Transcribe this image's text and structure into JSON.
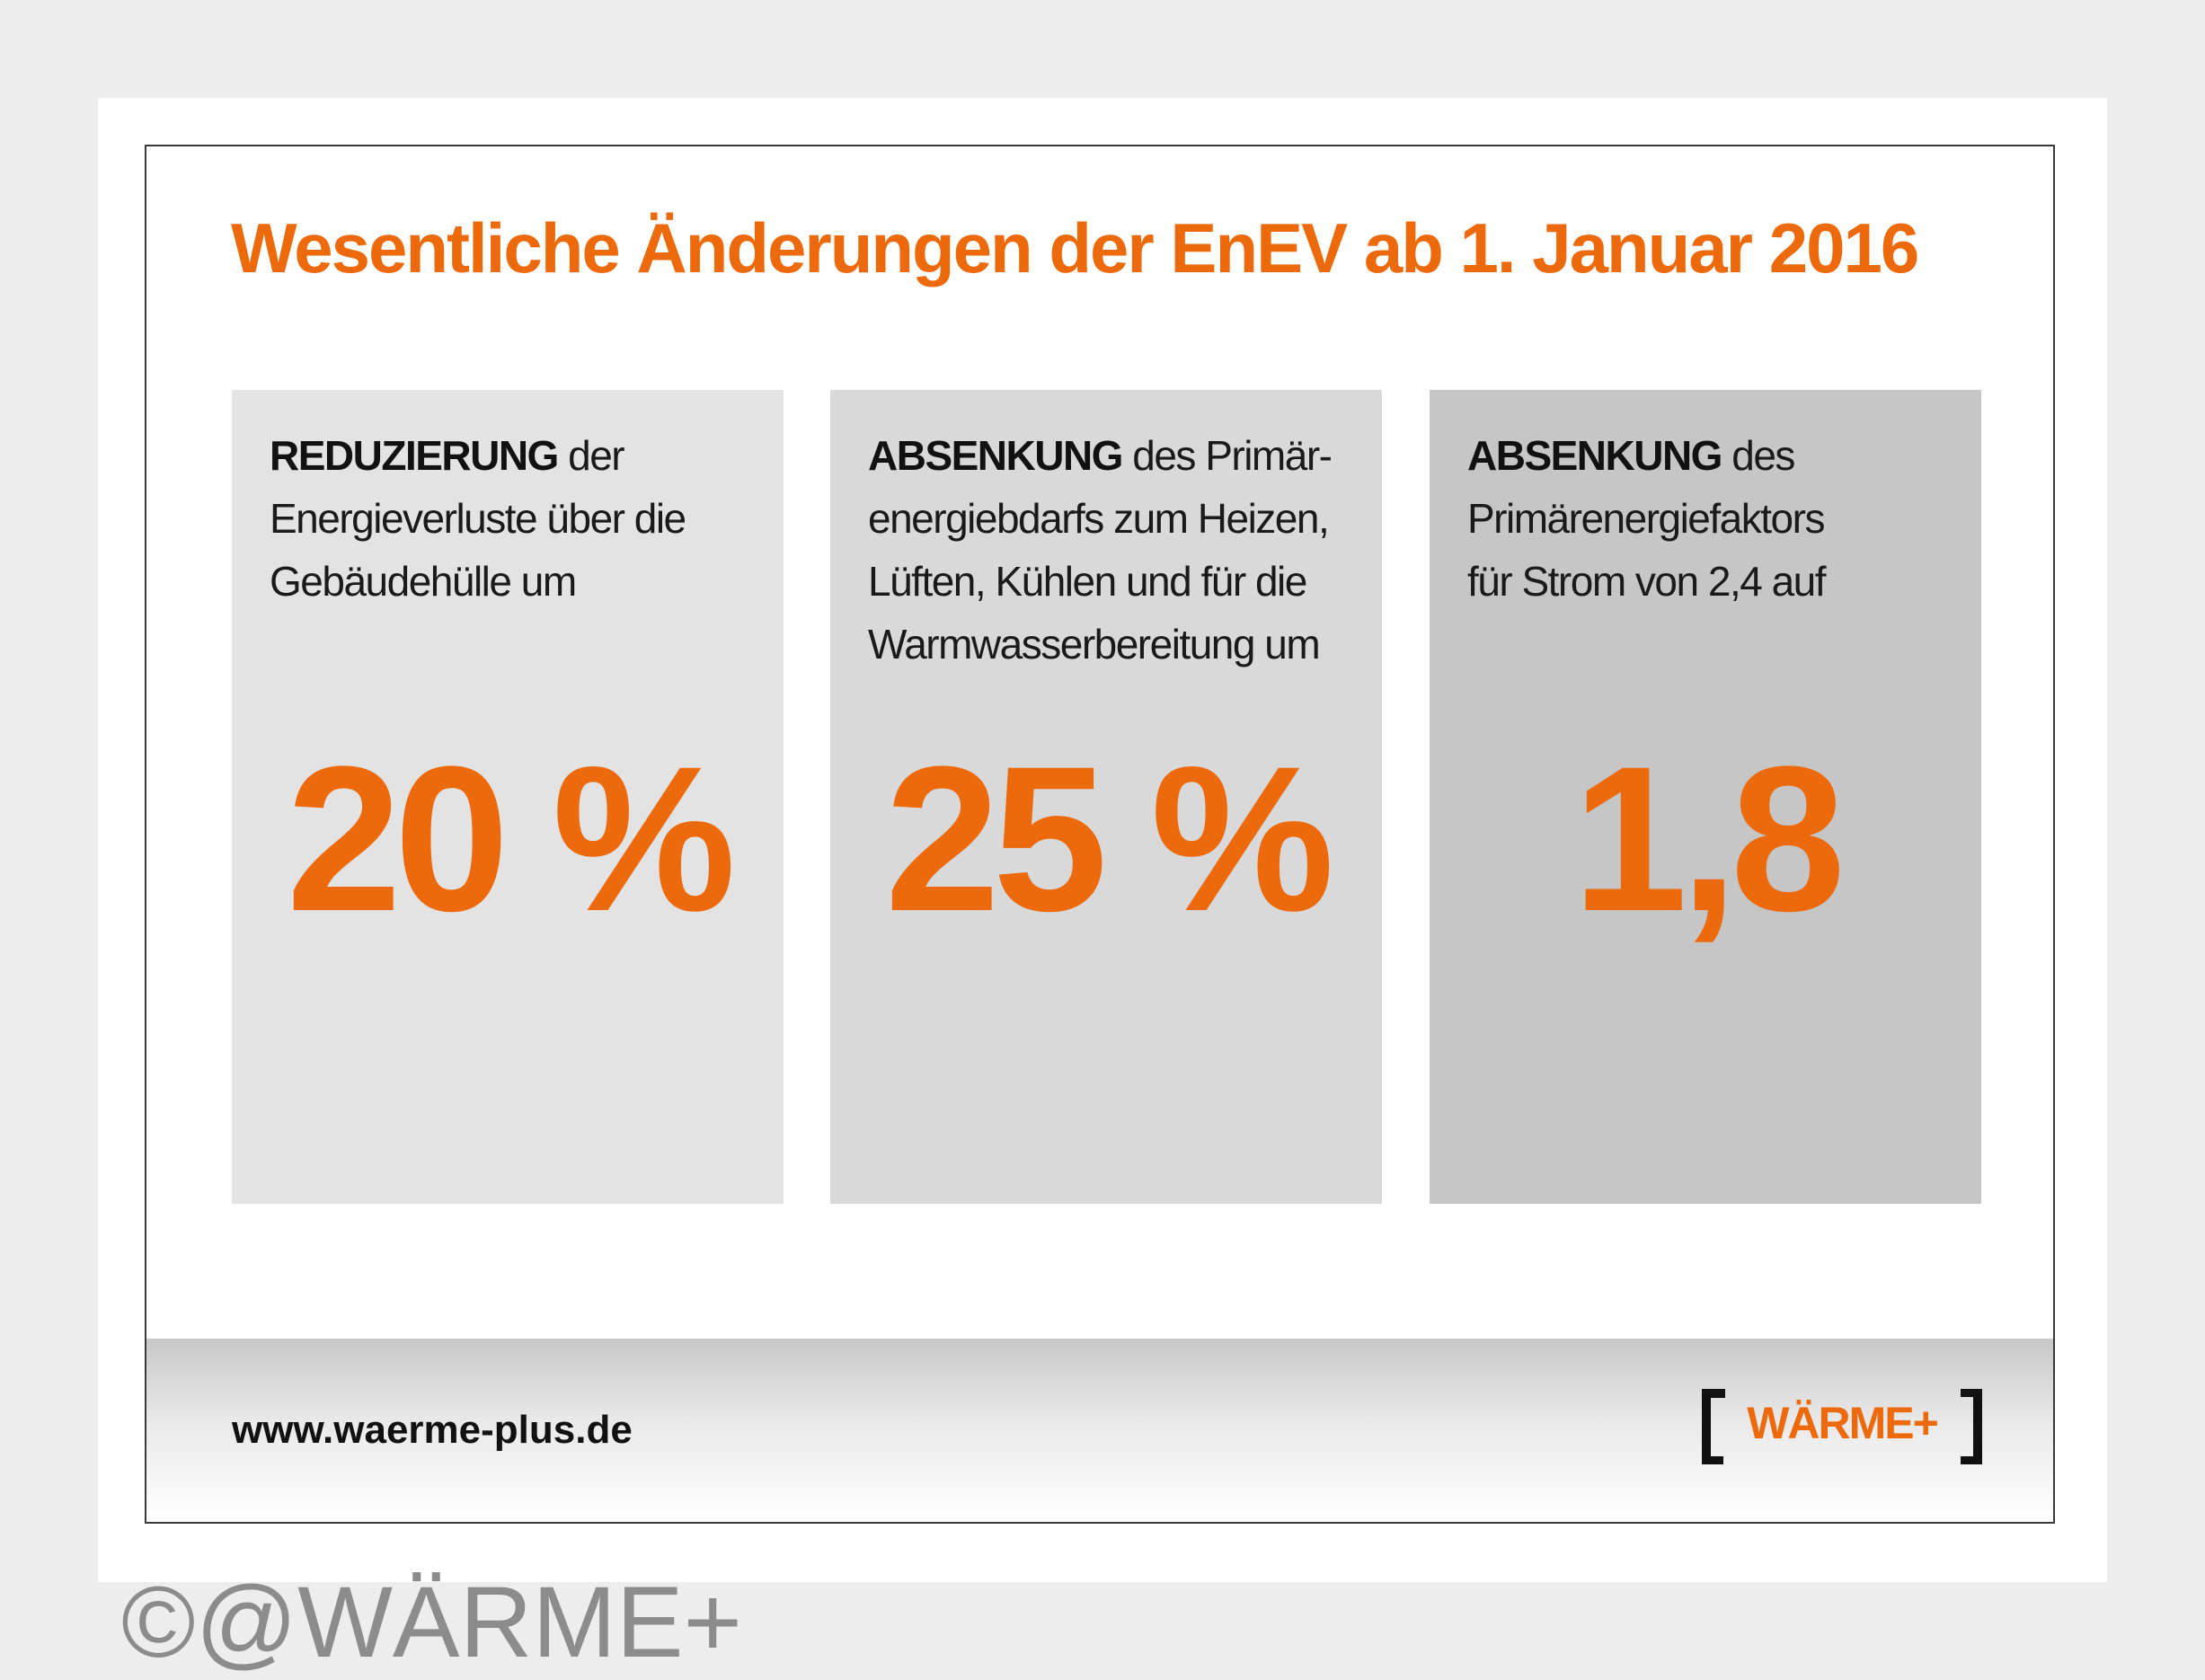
{
  "headline": "Wesentliche Änderungen der EnEV ab 1. Januar 2016",
  "boxes": [
    {
      "strong": "REDUZIERUNG",
      "lines": [
        " der",
        "Energieverluste über die",
        "Gebäudehülle um"
      ],
      "value": "20 %"
    },
    {
      "strong": "ABSENKUNG",
      "lines": [
        " des Primär-",
        "energiebdarfs zum Heizen,",
        "Lüften, Kühlen und für die",
        "Warmwasserbereitung um"
      ],
      "value": "25 %"
    },
    {
      "strong": "ABSENKUNG",
      "lines": [
        " des",
        "Primärenergiefaktors",
        "für Strom von 2,4 auf"
      ],
      "value": "1,8"
    }
  ],
  "footer": {
    "url": "www.waerme-plus.de",
    "logo_text": "WÄRME+"
  },
  "watermark": "©@WÄRME+",
  "colors": {
    "accent": "#ec6a0c",
    "box_1": "#e3e3e3",
    "box_2": "#d9d9d9",
    "box_3": "#c6c6c6"
  }
}
